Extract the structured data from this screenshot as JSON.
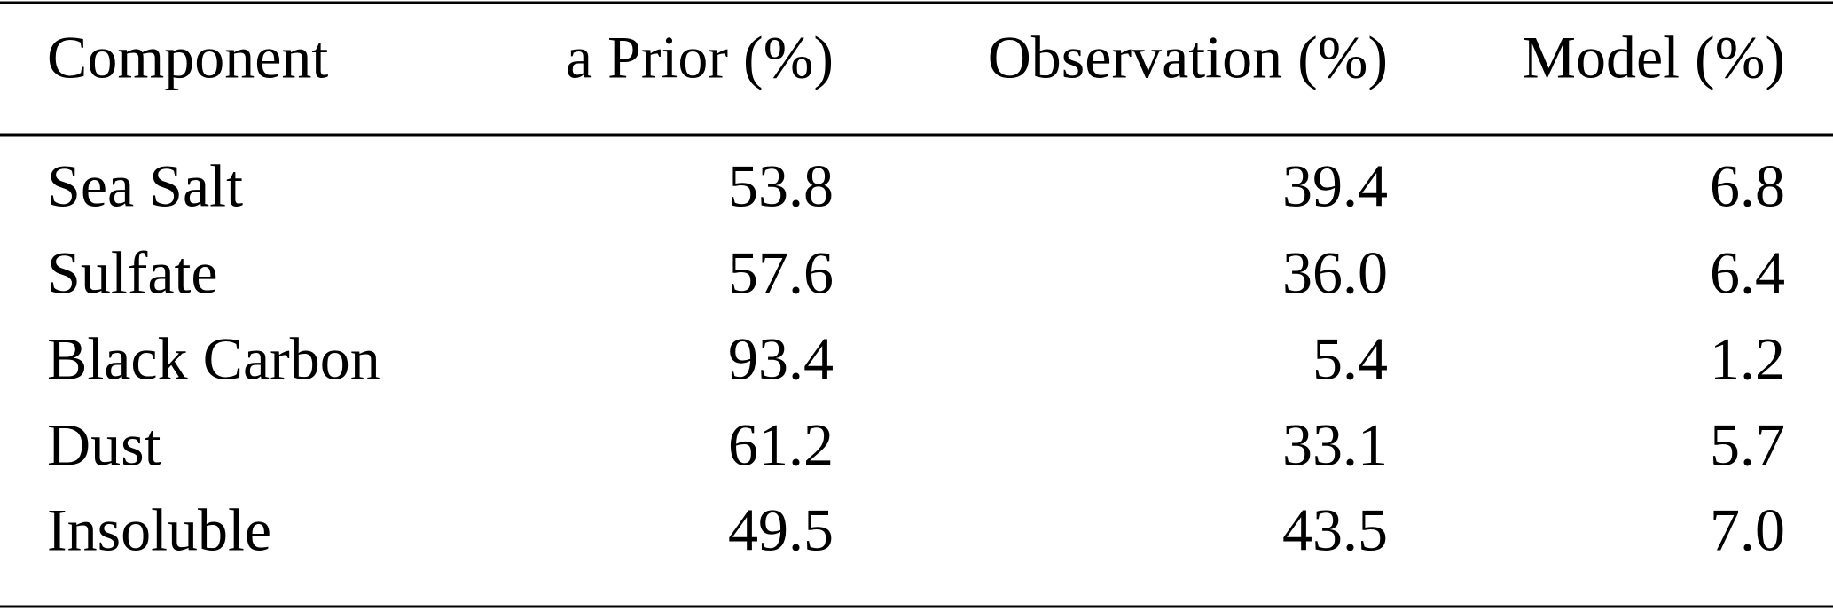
{
  "table": {
    "header": [
      "Component",
      "a Prior (%)",
      "Observation (%)",
      "Model (%)"
    ],
    "rows": [
      [
        "Sea Salt",
        "53.8",
        "39.4",
        "6.8"
      ],
      [
        "Sulfate",
        "57.6",
        "36.0",
        "6.4"
      ],
      [
        "Black Carbon",
        "93.4",
        "5.4",
        "1.2"
      ],
      [
        "Dust",
        "61.2",
        "33.1",
        "5.7"
      ],
      [
        "Insoluble",
        "49.5",
        "43.5",
        "7.0"
      ]
    ]
  }
}
